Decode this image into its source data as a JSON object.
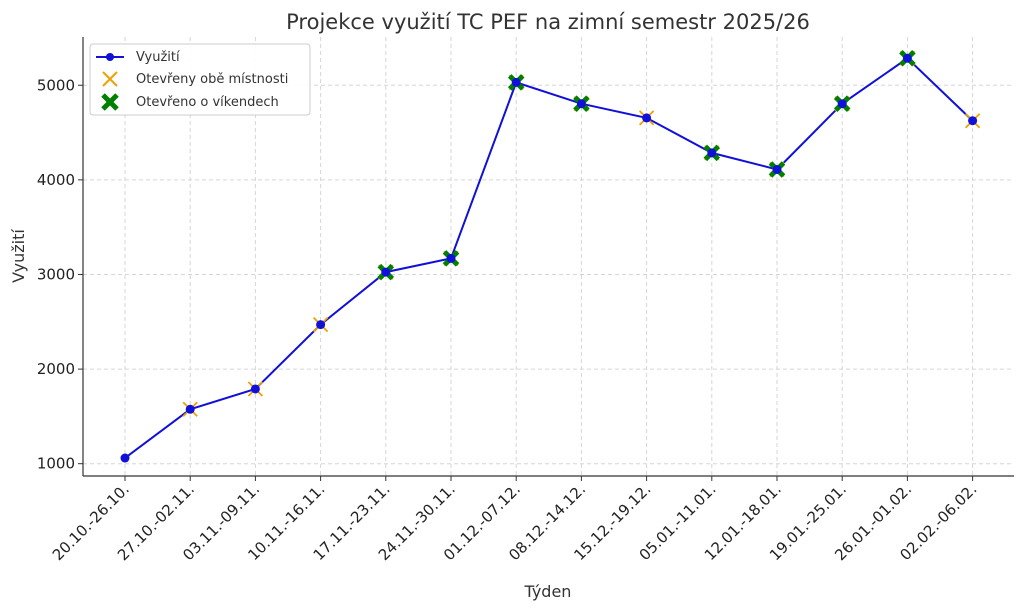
{
  "chart_data": {
    "type": "line",
    "title": "Projekce využití TC PEF na zimní semestr 2025/26",
    "xlabel": "Týden",
    "ylabel": "Využití",
    "categories": [
      "20.10.-26.10.",
      "27.10.-02.11.",
      "03.11.-09.11.",
      "10.11.-16.11.",
      "17.11.-23.11.",
      "24.11.-30.11.",
      "01.12.-07.12.",
      "08.12.-14.12.",
      "15.12.-19.12.",
      "05.01.-11.01.",
      "12.01.-18.01.",
      "19.01.-25.01.",
      "26.01.-01.02.",
      "02.02.-06.02."
    ],
    "ylim": [
      870,
      5510
    ],
    "yticks": [
      1000,
      2000,
      3000,
      4000,
      5000
    ],
    "grid": true,
    "legend_position": "top-left",
    "series": [
      {
        "name": "Využití",
        "values": [
          1060,
          1575,
          1790,
          2470,
          3025,
          3170,
          5030,
          4805,
          4655,
          4285,
          4110,
          4805,
          5285,
          4625
        ],
        "color": "#1010d8",
        "marker": "circle"
      },
      {
        "name": "Otevřeny obě místnosti",
        "indices": [
          1,
          2,
          3,
          4,
          5,
          6,
          7,
          8,
          9,
          10,
          11,
          12,
          13
        ],
        "color": "#f0a000",
        "marker": "x"
      },
      {
        "name": "Otevřeno o víkendech",
        "indices": [
          4,
          5,
          6,
          7,
          9,
          10,
          11,
          12
        ],
        "color": "#008000",
        "marker": "X"
      }
    ]
  }
}
